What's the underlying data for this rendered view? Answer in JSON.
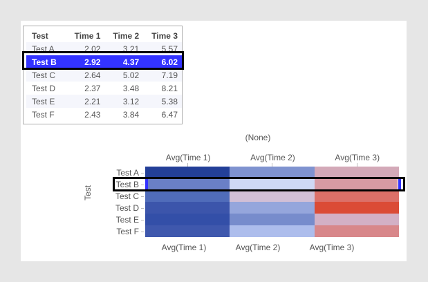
{
  "table": {
    "headers": [
      "Test",
      "Time 1",
      "Time 2",
      "Time 3"
    ],
    "rows": [
      [
        "Test A",
        "2.02",
        "3.21",
        "5.57"
      ],
      [
        "Test B",
        "2.92",
        "4.37",
        "6.02"
      ],
      [
        "Test C",
        "2.64",
        "5.02",
        "7.19"
      ],
      [
        "Test D",
        "2.37",
        "3.48",
        "8.21"
      ],
      [
        "Test E",
        "2.21",
        "3.12",
        "5.38"
      ],
      [
        "Test F",
        "2.43",
        "3.84",
        "6.47"
      ]
    ],
    "selected_row": "Test B",
    "selection_color": "#3333ff"
  },
  "chart_data": {
    "type": "heatmap",
    "title": "(None)",
    "ylabel": "Test",
    "categories": [
      "Test A",
      "Test B",
      "Test C",
      "Test D",
      "Test E",
      "Test F"
    ],
    "columns": [
      "Avg(Time 1)",
      "Avg(Time 2)",
      "Avg(Time 3)"
    ],
    "values": [
      [
        2.02,
        3.21,
        5.57
      ],
      [
        2.92,
        4.37,
        6.02
      ],
      [
        2.64,
        5.02,
        7.19
      ],
      [
        2.37,
        3.48,
        8.21
      ],
      [
        2.21,
        3.12,
        5.38
      ],
      [
        2.43,
        3.84,
        6.47
      ]
    ],
    "colors": [
      [
        "#233f98",
        "#7f93d0",
        "#d3a9b8"
      ],
      [
        "#6a7fc6",
        "#cfd8f5",
        "#d79aa3"
      ],
      [
        "#506cba",
        "#d2bfd6",
        "#dc7068"
      ],
      [
        "#3c55ab",
        "#95a6dc",
        "#db4b36"
      ],
      [
        "#334fa8",
        "#778ccc",
        "#d3b0c5"
      ],
      [
        "#3f58ad",
        "#adbdec",
        "#d8878a"
      ]
    ],
    "bottom_labels": [
      "Avg(Time 1)",
      "Avg(Time 2)",
      "Avg(Time 3)"
    ],
    "highlighted_row": "Test B"
  }
}
